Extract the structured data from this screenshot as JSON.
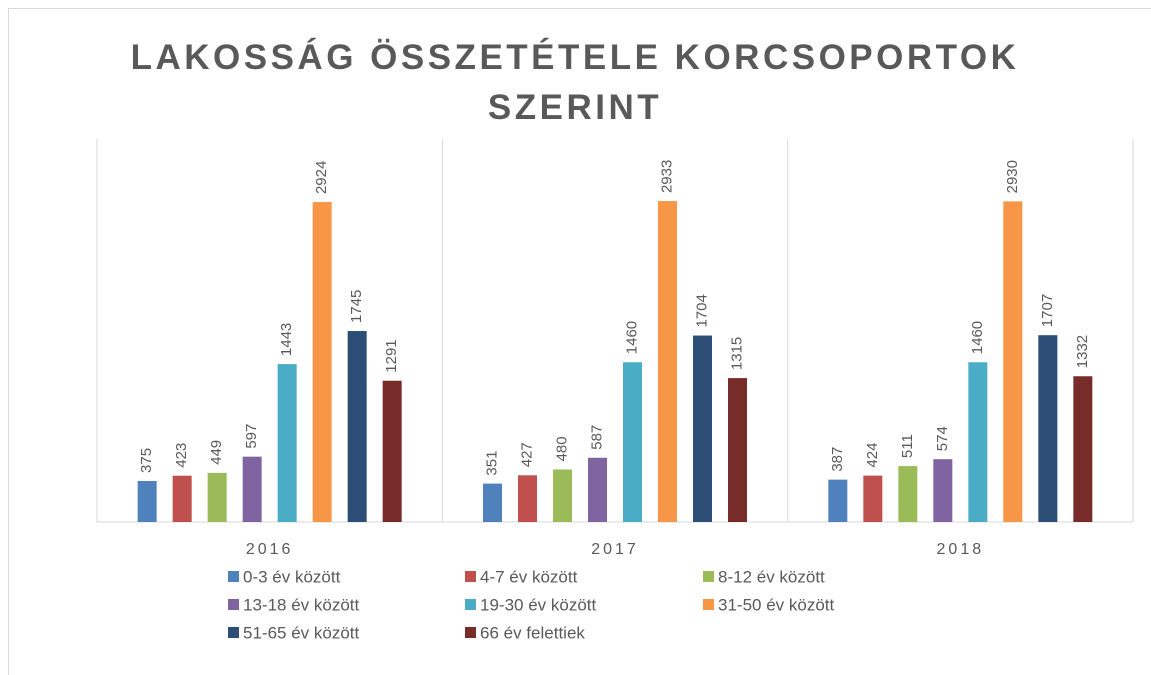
{
  "chart_data": {
    "type": "bar",
    "title": "LAKOSSÁG ÖSSZETÉTELE KORCSOPORTOK SZERINT",
    "categories": [
      "2016",
      "2017",
      "2018"
    ],
    "ylim": [
      0,
      3500
    ],
    "series": [
      {
        "name": "0-3 év között",
        "color": "#4f81bd",
        "values": [
          375,
          351,
          387
        ]
      },
      {
        "name": "4-7 év között",
        "color": "#c0504d",
        "values": [
          423,
          427,
          424
        ]
      },
      {
        "name": "8-12 év között",
        "color": "#9bbb59",
        "values": [
          449,
          480,
          511
        ]
      },
      {
        "name": "13-18 év között",
        "color": "#8064a2",
        "values": [
          597,
          587,
          574
        ]
      },
      {
        "name": "19-30 év között",
        "color": "#4bacc6",
        "values": [
          1443,
          1460,
          1460
        ]
      },
      {
        "name": "31-50 év között",
        "color": "#f79646",
        "values": [
          2924,
          2933,
          2930
        ]
      },
      {
        "name": "51-65 év között",
        "color": "#2c4d75",
        "values": [
          1745,
          1704,
          1707
        ]
      },
      {
        "name": "66 év felettiek",
        "color": "#772c2a",
        "values": [
          1291,
          1315,
          1332
        ]
      }
    ]
  }
}
